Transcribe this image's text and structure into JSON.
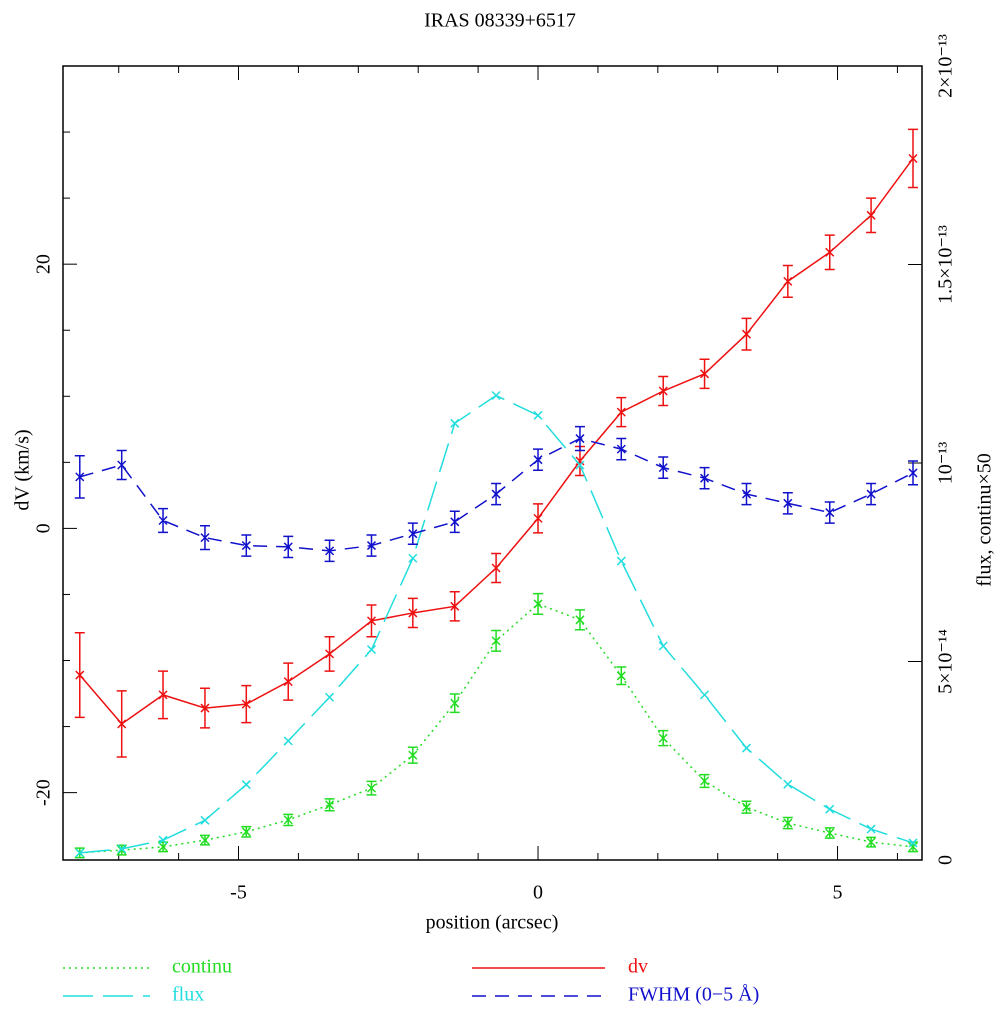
{
  "chart_data": {
    "type": "line",
    "title": "IRAS 08339+6517",
    "xlabel": "position (arcsec)",
    "ylabel": "dV (km/s)",
    "y2label": "flux, continu×50",
    "x": [
      -7.65,
      -6.95,
      -6.26,
      -5.56,
      -4.87,
      -4.17,
      -3.48,
      -2.78,
      -2.09,
      -1.39,
      -0.7,
      0,
      0.7,
      1.39,
      2.09,
      2.78,
      3.48,
      4.17,
      4.87,
      5.56,
      6.26
    ],
    "xlim": [
      -7.93,
      6.41
    ],
    "xticks": [
      -5,
      0,
      5
    ],
    "xminorticks": [
      -7,
      -6,
      -4,
      -3,
      -2,
      -1,
      1,
      2,
      3,
      4,
      6
    ],
    "ylim": [
      -25.1,
      35.0
    ],
    "yticks": [
      -20,
      0,
      20
    ],
    "yminorticks": [
      -15,
      -10,
      -5,
      5,
      10,
      15,
      25,
      30
    ],
    "y2lim": [
      0,
      2e-13
    ],
    "y2ticks": [
      {
        "value": 0,
        "label": "0"
      },
      {
        "value": 5e-14,
        "label": "5×10⁻¹⁴"
      },
      {
        "value": 1e-13,
        "label": "10⁻¹³"
      },
      {
        "value": 1.5e-13,
        "label": "1.5×10⁻¹³"
      },
      {
        "value": 2e-13,
        "label": "2×10⁻¹³"
      }
    ],
    "series": [
      {
        "name": "continu",
        "color": "#22dd22",
        "dash": "dotted",
        "axis": "y2",
        "values": [
          1.8e-15,
          2.5e-15,
          3.3e-15,
          5e-15,
          7.1e-15,
          1.01e-14,
          1.39e-14,
          1.81e-14,
          2.64e-14,
          3.95e-14,
          5.52e-14,
          6.45e-14,
          6.05e-14,
          4.64e-14,
          3.07e-14,
          1.99e-14,
          1.33e-14,
          9.3e-15,
          6.8e-15,
          4.5e-15,
          3.3e-15
        ],
        "errors": [
          1.2e-15,
          1.2e-15,
          1.2e-15,
          1.2e-15,
          1.3e-15,
          1.4e-15,
          1.5e-15,
          1.7e-15,
          2e-15,
          2.3e-15,
          2.6e-15,
          2.6e-15,
          2.5e-15,
          2.2e-15,
          1.9e-15,
          1.6e-15,
          1.5e-15,
          1.4e-15,
          1.3e-15,
          1.2e-15,
          1.2e-15
        ]
      },
      {
        "name": "dv",
        "color": "#ee1111",
        "dash": "solid",
        "axis": "y",
        "values": [
          -11.1,
          -14.8,
          -12.6,
          -13.6,
          -13.3,
          -11.6,
          -9.5,
          -7.0,
          -6.4,
          -5.9,
          -3.0,
          0.76,
          5.1,
          8.8,
          10.4,
          11.7,
          14.7,
          18.7,
          20.9,
          23.7,
          28.0
        ],
        "errors": [
          3.2,
          2.5,
          1.8,
          1.5,
          1.4,
          1.4,
          1.3,
          1.2,
          1.1,
          1.1,
          1.1,
          1.1,
          1.1,
          1.1,
          1.1,
          1.1,
          1.2,
          1.2,
          1.3,
          1.3,
          2.2
        ]
      },
      {
        "name": "flux",
        "color": "#22dddd",
        "dash": "long-dash",
        "axis": "y2",
        "values": [
          1.8e-15,
          2.8e-15,
          5e-15,
          1e-14,
          1.9e-14,
          3e-14,
          4.1e-14,
          5.3e-14,
          7.6e-14,
          1.1e-13,
          1.17e-13,
          1.12e-13,
          9.95e-14,
          7.53e-14,
          5.39e-14,
          4.16e-14,
          2.82e-14,
          1.91e-14,
          1.28e-14,
          7.8e-15,
          4.3e-15
        ]
      },
      {
        "name": "FWHM (0−5 Å)",
        "color": "#1111cc",
        "dash": "dash",
        "axis": "y",
        "values": [
          3.9,
          4.8,
          0.6,
          -0.7,
          -1.3,
          -1.4,
          -1.7,
          -1.3,
          -0.4,
          0.5,
          2.6,
          5.2,
          6.8,
          6.0,
          4.6,
          3.8,
          2.6,
          1.9,
          1.2,
          2.6,
          4.2
        ],
        "errors": [
          1.6,
          1.1,
          0.9,
          0.9,
          0.8,
          0.8,
          0.8,
          0.8,
          0.8,
          0.8,
          0.8,
          0.8,
          0.9,
          0.8,
          0.8,
          0.8,
          0.8,
          0.8,
          0.8,
          0.8,
          0.9
        ]
      }
    ]
  }
}
